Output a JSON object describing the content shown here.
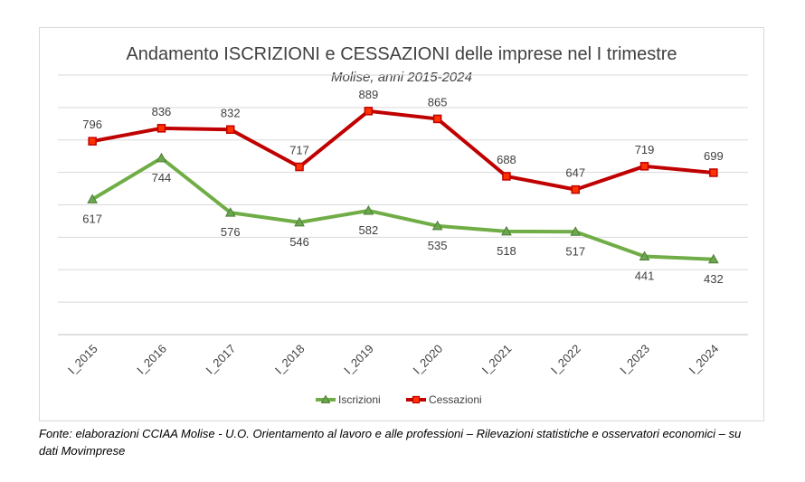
{
  "chart_data": {
    "type": "line",
    "title": "Andamento ISCRIZIONI e CESSAZIONI delle imprese nel I trimestre",
    "subtitle": "Molise, anni 2015-2024",
    "categories": [
      "I_2015",
      "I_2016",
      "I_2017",
      "I_2018",
      "I_2019",
      "I_2020",
      "I_2021",
      "I_2022",
      "I_2023",
      "I_2024"
    ],
    "series": [
      {
        "name": "Iscrizioni",
        "color": "#70ad47",
        "marker": "triangle",
        "values": [
          617,
          744,
          576,
          546,
          582,
          535,
          518,
          517,
          441,
          432
        ]
      },
      {
        "name": "Cessazioni",
        "color": "#c00000",
        "marker": "square",
        "values": [
          796,
          836,
          832,
          717,
          889,
          865,
          688,
          647,
          719,
          699
        ]
      }
    ],
    "ylim": [
      200,
      1000
    ],
    "y_gridlines": 8,
    "grid": true,
    "y_axis_labels": false,
    "legend_position": "bottom",
    "data_labels": true
  },
  "source_note": "Fonte: elaborazioni CCIAA Molise - U.O. Orientamento al lavoro e alle professioni – Rilevazioni statistiche e osservatori economici – su dati Movimprese"
}
